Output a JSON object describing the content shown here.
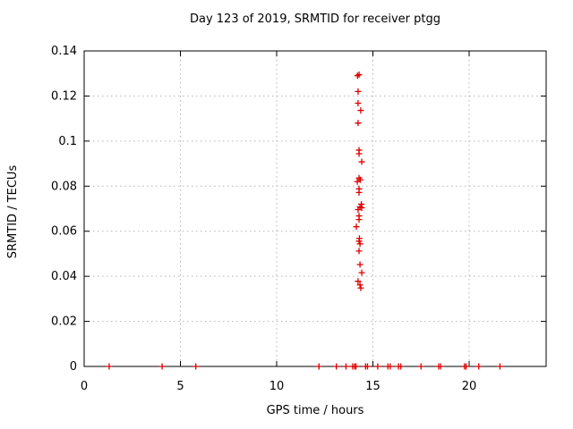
{
  "window": {
    "background": "#ffffff"
  },
  "chart_data": {
    "type": "scatter",
    "title": "Day 123 of 2019, SRMTID for receiver ptgg",
    "xlabel": "GPS time / hours",
    "ylabel": "SRMTID / TECUs",
    "xlim": [
      0,
      24
    ],
    "ylim": [
      0,
      0.14
    ],
    "xticks": [
      {
        "v": 0,
        "label": "0"
      },
      {
        "v": 5,
        "label": "5"
      },
      {
        "v": 10,
        "label": "10"
      },
      {
        "v": 15,
        "label": "15"
      },
      {
        "v": 20,
        "label": "20"
      }
    ],
    "yticks": [
      {
        "v": 0,
        "label": "0"
      },
      {
        "v": 0.02,
        "label": "0.02"
      },
      {
        "v": 0.04,
        "label": "0.04"
      },
      {
        "v": 0.06,
        "label": "0.06"
      },
      {
        "v": 0.08,
        "label": "0.08"
      },
      {
        "v": 0.1,
        "label": "0.1"
      },
      {
        "v": 0.12,
        "label": "0.12"
      },
      {
        "v": 0.14,
        "label": "0.14"
      }
    ],
    "grid": true,
    "legend": "none",
    "colors": {
      "marker": "#dd0000",
      "axis": "#000000",
      "grid": "#b4b4b4",
      "text": "#000000",
      "background": "#ffffff"
    },
    "series": [
      {
        "name": "SRMTID",
        "marker": "plus",
        "points": [
          [
            1.3,
            0
          ],
          [
            4.05,
            0
          ],
          [
            5.8,
            0
          ],
          [
            12.2,
            0
          ],
          [
            13.1,
            0
          ],
          [
            13.6,
            0
          ],
          [
            13.95,
            0
          ],
          [
            14.05,
            0
          ],
          [
            14.12,
            0
          ],
          [
            14.62,
            0
          ],
          [
            14.72,
            0
          ],
          [
            15.25,
            0
          ],
          [
            15.78,
            0
          ],
          [
            15.9,
            0
          ],
          [
            16.33,
            0
          ],
          [
            16.45,
            0
          ],
          [
            17.5,
            0
          ],
          [
            18.42,
            0
          ],
          [
            18.52,
            0
          ],
          [
            19.76,
            0
          ],
          [
            19.84,
            0
          ],
          [
            20.5,
            0
          ],
          [
            21.6,
            0
          ],
          [
            14.2,
            0.129
          ],
          [
            14.28,
            0.1295
          ],
          [
            14.23,
            0.122
          ],
          [
            14.23,
            0.1168
          ],
          [
            14.37,
            0.1136
          ],
          [
            14.23,
            0.108
          ],
          [
            14.28,
            0.096
          ],
          [
            14.28,
            0.0944
          ],
          [
            14.42,
            0.0908
          ],
          [
            14.28,
            0.0836
          ],
          [
            14.35,
            0.0828
          ],
          [
            14.19,
            0.082
          ],
          [
            14.28,
            0.0788
          ],
          [
            14.28,
            0.0772
          ],
          [
            14.4,
            0.072
          ],
          [
            14.33,
            0.0708
          ],
          [
            14.42,
            0.0704
          ],
          [
            14.23,
            0.0696
          ],
          [
            14.28,
            0.0668
          ],
          [
            14.28,
            0.0652
          ],
          [
            14.14,
            0.062
          ],
          [
            14.3,
            0.0568
          ],
          [
            14.28,
            0.0556
          ],
          [
            14.33,
            0.0544
          ],
          [
            14.28,
            0.0512
          ],
          [
            14.33,
            0.0452
          ],
          [
            14.42,
            0.0416
          ],
          [
            14.23,
            0.0378
          ],
          [
            14.33,
            0.0362
          ],
          [
            14.37,
            0.0348
          ]
        ]
      }
    ]
  }
}
